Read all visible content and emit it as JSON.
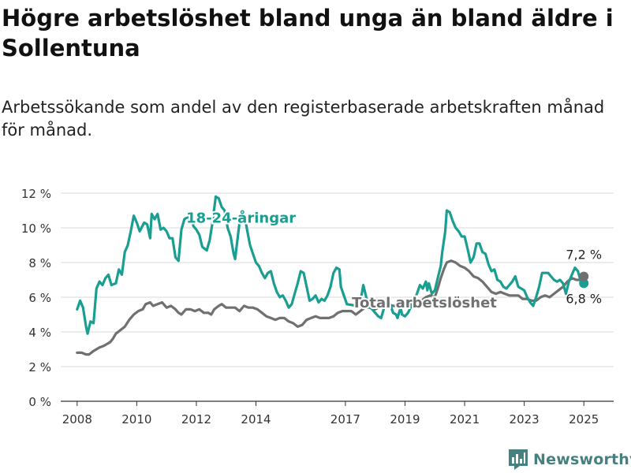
{
  "title": "Högre arbetslöshet bland unga än bland äldre i Sollentuna",
  "subtitle": "Arbetssökande som andel av den registerbaserade arbetskraften månad för månad.",
  "brand": {
    "name": "Newsworthy",
    "icon": "newsworthy-logo-icon",
    "color": "#46817f"
  },
  "chart_data": {
    "type": "line",
    "x_kind": "decimal-year",
    "xlim": [
      2007.45,
      2026.0
    ],
    "ylim": [
      0,
      12
    ],
    "y_ticks": [
      0,
      2,
      4,
      6,
      8,
      10,
      12
    ],
    "y_tick_labels": [
      "0 %",
      "2 %",
      "4 %",
      "6 %",
      "8 %",
      "10 %",
      "12 %"
    ],
    "x_ticks": [
      2008,
      2010,
      2012,
      2014,
      2017,
      2019,
      2021,
      2023,
      2025
    ],
    "x_tick_labels": [
      "2008",
      "2010",
      "2012",
      "2014",
      "2017",
      "2019",
      "2021",
      "2023",
      "2025"
    ],
    "grid": "horizontal",
    "legend": "inline labels",
    "series": [
      {
        "name": "18-24-åringar",
        "color": "#1a9e92",
        "end_value": 6.8,
        "end_label": "6,8 %",
        "points": [
          [
            2008.0,
            5.3
          ],
          [
            2008.1,
            5.8
          ],
          [
            2008.2,
            5.4
          ],
          [
            2008.3,
            4.3
          ],
          [
            2008.35,
            3.9
          ],
          [
            2008.45,
            4.6
          ],
          [
            2008.55,
            4.5
          ],
          [
            2008.65,
            6.5
          ],
          [
            2008.75,
            6.9
          ],
          [
            2008.85,
            6.7
          ],
          [
            2008.95,
            7.1
          ],
          [
            2009.05,
            7.3
          ],
          [
            2009.15,
            6.7
          ],
          [
            2009.3,
            6.8
          ],
          [
            2009.4,
            7.6
          ],
          [
            2009.5,
            7.3
          ],
          [
            2009.6,
            8.6
          ],
          [
            2009.7,
            9.0
          ],
          [
            2009.8,
            9.8
          ],
          [
            2009.9,
            10.7
          ],
          [
            2010.0,
            10.3
          ],
          [
            2010.1,
            9.8
          ],
          [
            2010.25,
            10.3
          ],
          [
            2010.35,
            10.2
          ],
          [
            2010.45,
            9.4
          ],
          [
            2010.5,
            10.8
          ],
          [
            2010.6,
            10.5
          ],
          [
            2010.7,
            10.8
          ],
          [
            2010.8,
            9.9
          ],
          [
            2010.9,
            10.0
          ],
          [
            2011.0,
            9.8
          ],
          [
            2011.1,
            9.4
          ],
          [
            2011.2,
            9.4
          ],
          [
            2011.3,
            8.3
          ],
          [
            2011.4,
            8.1
          ],
          [
            2011.5,
            9.9
          ],
          [
            2011.6,
            10.5
          ],
          [
            2011.7,
            10.6
          ],
          [
            2011.8,
            10.9
          ],
          [
            2011.9,
            10.1
          ],
          [
            2012.0,
            9.9
          ],
          [
            2012.1,
            9.6
          ],
          [
            2012.2,
            8.9
          ],
          [
            2012.35,
            8.7
          ],
          [
            2012.45,
            9.3
          ],
          [
            2012.55,
            10.4
          ],
          [
            2012.65,
            11.8
          ],
          [
            2012.75,
            11.7
          ],
          [
            2012.85,
            11.2
          ],
          [
            2012.95,
            11.0
          ],
          [
            2013.05,
            10.0
          ],
          [
            2013.15,
            9.5
          ],
          [
            2013.25,
            8.5
          ],
          [
            2013.3,
            8.2
          ],
          [
            2013.4,
            9.6
          ],
          [
            2013.5,
            11.0
          ],
          [
            2013.6,
            10.9
          ],
          [
            2013.7,
            9.9
          ],
          [
            2013.8,
            9.0
          ],
          [
            2013.9,
            8.5
          ],
          [
            2014.0,
            8.0
          ],
          [
            2014.1,
            7.8
          ],
          [
            2014.2,
            7.4
          ],
          [
            2014.3,
            7.1
          ],
          [
            2014.4,
            7.4
          ],
          [
            2014.5,
            7.5
          ],
          [
            2014.6,
            6.8
          ],
          [
            2014.7,
            6.3
          ],
          [
            2014.8,
            6.0
          ],
          [
            2014.9,
            6.1
          ],
          [
            2015.0,
            5.8
          ],
          [
            2015.1,
            5.4
          ],
          [
            2015.2,
            5.6
          ],
          [
            2015.3,
            6.2
          ],
          [
            2015.4,
            6.8
          ],
          [
            2015.5,
            7.5
          ],
          [
            2015.6,
            7.4
          ],
          [
            2015.7,
            6.6
          ],
          [
            2015.8,
            5.8
          ],
          [
            2015.9,
            5.9
          ],
          [
            2016.0,
            6.1
          ],
          [
            2016.1,
            5.7
          ],
          [
            2016.2,
            5.9
          ],
          [
            2016.3,
            5.8
          ],
          [
            2016.4,
            6.1
          ],
          [
            2016.5,
            6.6
          ],
          [
            2016.6,
            7.4
          ],
          [
            2016.7,
            7.7
          ],
          [
            2016.8,
            7.6
          ],
          [
            2016.85,
            6.6
          ],
          [
            2016.95,
            6.1
          ],
          [
            2017.05,
            5.6
          ],
          [
            2017.4,
            5.5
          ],
          [
            2017.5,
            5.7
          ],
          [
            2017.6,
            6.7
          ],
          [
            2017.7,
            6.0
          ],
          [
            2017.8,
            5.5
          ],
          [
            2018.0,
            5.1
          ],
          [
            2018.1,
            4.9
          ],
          [
            2018.2,
            4.8
          ],
          [
            2018.3,
            5.4
          ],
          [
            2018.4,
            6.0
          ],
          [
            2018.5,
            5.6
          ],
          [
            2018.6,
            5.1
          ],
          [
            2018.7,
            5.0
          ],
          [
            2018.75,
            4.8
          ],
          [
            2018.85,
            5.4
          ],
          [
            2018.9,
            5.0
          ],
          [
            2019.0,
            4.9
          ],
          [
            2019.1,
            5.1
          ],
          [
            2019.3,
            5.8
          ],
          [
            2019.4,
            6.2
          ],
          [
            2019.5,
            6.7
          ],
          [
            2019.6,
            6.5
          ],
          [
            2019.7,
            6.9
          ],
          [
            2019.75,
            6.4
          ],
          [
            2019.8,
            6.8
          ],
          [
            2019.9,
            6.2
          ],
          [
            2020.0,
            6.4
          ],
          [
            2020.1,
            7.1
          ],
          [
            2020.2,
            7.8
          ],
          [
            2020.25,
            8.6
          ],
          [
            2020.35,
            9.8
          ],
          [
            2020.4,
            11.0
          ],
          [
            2020.5,
            10.9
          ],
          [
            2020.6,
            10.4
          ],
          [
            2020.7,
            10.0
          ],
          [
            2020.8,
            9.8
          ],
          [
            2020.9,
            9.5
          ],
          [
            2021.0,
            9.5
          ],
          [
            2021.1,
            8.8
          ],
          [
            2021.2,
            8.0
          ],
          [
            2021.3,
            8.3
          ],
          [
            2021.4,
            9.1
          ],
          [
            2021.5,
            9.1
          ],
          [
            2021.6,
            8.6
          ],
          [
            2021.7,
            8.5
          ],
          [
            2021.8,
            7.9
          ],
          [
            2021.9,
            7.5
          ],
          [
            2022.0,
            7.6
          ],
          [
            2022.1,
            7.0
          ],
          [
            2022.2,
            6.9
          ],
          [
            2022.3,
            6.6
          ],
          [
            2022.4,
            6.5
          ],
          [
            2022.5,
            6.7
          ],
          [
            2022.6,
            6.9
          ],
          [
            2022.7,
            7.2
          ],
          [
            2022.8,
            6.6
          ],
          [
            2022.9,
            6.5
          ],
          [
            2023.0,
            6.4
          ],
          [
            2023.1,
            6.0
          ],
          [
            2023.2,
            5.7
          ],
          [
            2023.3,
            5.5
          ],
          [
            2023.4,
            6.0
          ],
          [
            2023.5,
            6.6
          ],
          [
            2023.6,
            7.4
          ],
          [
            2023.7,
            7.4
          ],
          [
            2023.8,
            7.4
          ],
          [
            2023.9,
            7.2
          ],
          [
            2024.0,
            7.0
          ],
          [
            2024.1,
            6.9
          ],
          [
            2024.2,
            7.0
          ],
          [
            2024.3,
            6.8
          ],
          [
            2024.4,
            6.2
          ],
          [
            2024.5,
            6.9
          ],
          [
            2024.6,
            7.3
          ],
          [
            2024.7,
            7.7
          ],
          [
            2024.8,
            7.5
          ],
          [
            2024.9,
            6.9
          ],
          [
            2025.0,
            6.8
          ]
        ]
      },
      {
        "name": "Total arbetslöshet",
        "color": "#707070",
        "end_value": 7.2,
        "end_label": "7,2 %",
        "points": [
          [
            2008.0,
            2.8
          ],
          [
            2008.15,
            2.8
          ],
          [
            2008.3,
            2.7
          ],
          [
            2008.4,
            2.7
          ],
          [
            2008.55,
            2.9
          ],
          [
            2008.65,
            3.0
          ],
          [
            2008.75,
            3.1
          ],
          [
            2008.9,
            3.2
          ],
          [
            2009.0,
            3.3
          ],
          [
            2009.1,
            3.4
          ],
          [
            2009.2,
            3.6
          ],
          [
            2009.3,
            3.9
          ],
          [
            2009.45,
            4.1
          ],
          [
            2009.6,
            4.3
          ],
          [
            2009.75,
            4.7
          ],
          [
            2009.9,
            5.0
          ],
          [
            2010.05,
            5.2
          ],
          [
            2010.2,
            5.3
          ],
          [
            2010.3,
            5.6
          ],
          [
            2010.45,
            5.7
          ],
          [
            2010.55,
            5.5
          ],
          [
            2010.7,
            5.6
          ],
          [
            2010.85,
            5.7
          ],
          [
            2011.0,
            5.4
          ],
          [
            2011.15,
            5.5
          ],
          [
            2011.3,
            5.3
          ],
          [
            2011.4,
            5.1
          ],
          [
            2011.5,
            5.0
          ],
          [
            2011.65,
            5.3
          ],
          [
            2011.8,
            5.3
          ],
          [
            2011.95,
            5.2
          ],
          [
            2012.1,
            5.3
          ],
          [
            2012.25,
            5.1
          ],
          [
            2012.4,
            5.1
          ],
          [
            2012.5,
            5.0
          ],
          [
            2012.6,
            5.3
          ],
          [
            2012.75,
            5.5
          ],
          [
            2012.85,
            5.6
          ],
          [
            2013.0,
            5.4
          ],
          [
            2013.15,
            5.4
          ],
          [
            2013.3,
            5.4
          ],
          [
            2013.45,
            5.2
          ],
          [
            2013.6,
            5.5
          ],
          [
            2013.75,
            5.4
          ],
          [
            2013.9,
            5.4
          ],
          [
            2014.05,
            5.3
          ],
          [
            2014.2,
            5.1
          ],
          [
            2014.35,
            4.9
          ],
          [
            2014.5,
            4.8
          ],
          [
            2014.65,
            4.7
          ],
          [
            2014.8,
            4.8
          ],
          [
            2014.95,
            4.8
          ],
          [
            2015.1,
            4.6
          ],
          [
            2015.25,
            4.5
          ],
          [
            2015.4,
            4.3
          ],
          [
            2015.55,
            4.4
          ],
          [
            2015.7,
            4.7
          ],
          [
            2015.85,
            4.8
          ],
          [
            2016.0,
            4.9
          ],
          [
            2016.15,
            4.8
          ],
          [
            2016.3,
            4.8
          ],
          [
            2016.45,
            4.8
          ],
          [
            2016.6,
            4.9
          ],
          [
            2016.75,
            5.1
          ],
          [
            2016.9,
            5.2
          ],
          [
            2017.05,
            5.2
          ],
          [
            2017.2,
            5.2
          ],
          [
            2017.35,
            5.0
          ],
          [
            2017.5,
            5.2
          ],
          [
            2017.65,
            5.4
          ],
          [
            2017.8,
            5.4
          ],
          [
            2018.0,
            5.3
          ],
          [
            2018.2,
            5.5
          ],
          [
            2018.4,
            5.6
          ],
          [
            2018.6,
            5.5
          ],
          [
            2018.8,
            5.5
          ],
          [
            2019.0,
            5.6
          ],
          [
            2019.2,
            5.6
          ],
          [
            2019.4,
            5.7
          ],
          [
            2019.55,
            5.8
          ],
          [
            2019.7,
            6.0
          ],
          [
            2019.85,
            6.1
          ],
          [
            2020.0,
            6.0
          ],
          [
            2020.1,
            6.5
          ],
          [
            2020.2,
            7.1
          ],
          [
            2020.3,
            7.6
          ],
          [
            2020.4,
            8.0
          ],
          [
            2020.55,
            8.1
          ],
          [
            2020.7,
            8.0
          ],
          [
            2020.85,
            7.8
          ],
          [
            2021.0,
            7.7
          ],
          [
            2021.15,
            7.5
          ],
          [
            2021.3,
            7.2
          ],
          [
            2021.45,
            7.1
          ],
          [
            2021.6,
            6.9
          ],
          [
            2021.75,
            6.6
          ],
          [
            2021.9,
            6.3
          ],
          [
            2022.05,
            6.2
          ],
          [
            2022.2,
            6.3
          ],
          [
            2022.35,
            6.2
          ],
          [
            2022.5,
            6.1
          ],
          [
            2022.65,
            6.1
          ],
          [
            2022.8,
            6.1
          ],
          [
            2022.95,
            5.9
          ],
          [
            2023.1,
            5.9
          ],
          [
            2023.25,
            5.8
          ],
          [
            2023.4,
            5.8
          ],
          [
            2023.55,
            6.0
          ],
          [
            2023.7,
            6.1
          ],
          [
            2023.85,
            6.0
          ],
          [
            2024.0,
            6.2
          ],
          [
            2024.15,
            6.4
          ],
          [
            2024.3,
            6.6
          ],
          [
            2024.45,
            6.9
          ],
          [
            2024.6,
            7.1
          ],
          [
            2024.75,
            7.0
          ],
          [
            2024.9,
            7.0
          ],
          [
            2025.0,
            7.2
          ]
        ]
      }
    ],
    "annotations": [
      {
        "text": "18-24-åringar",
        "series": 0,
        "x": 2013.5,
        "y": 10.3
      },
      {
        "text": "Total arbetslöshet",
        "series": 1,
        "x": 2019.65,
        "y": 5.4
      }
    ]
  }
}
